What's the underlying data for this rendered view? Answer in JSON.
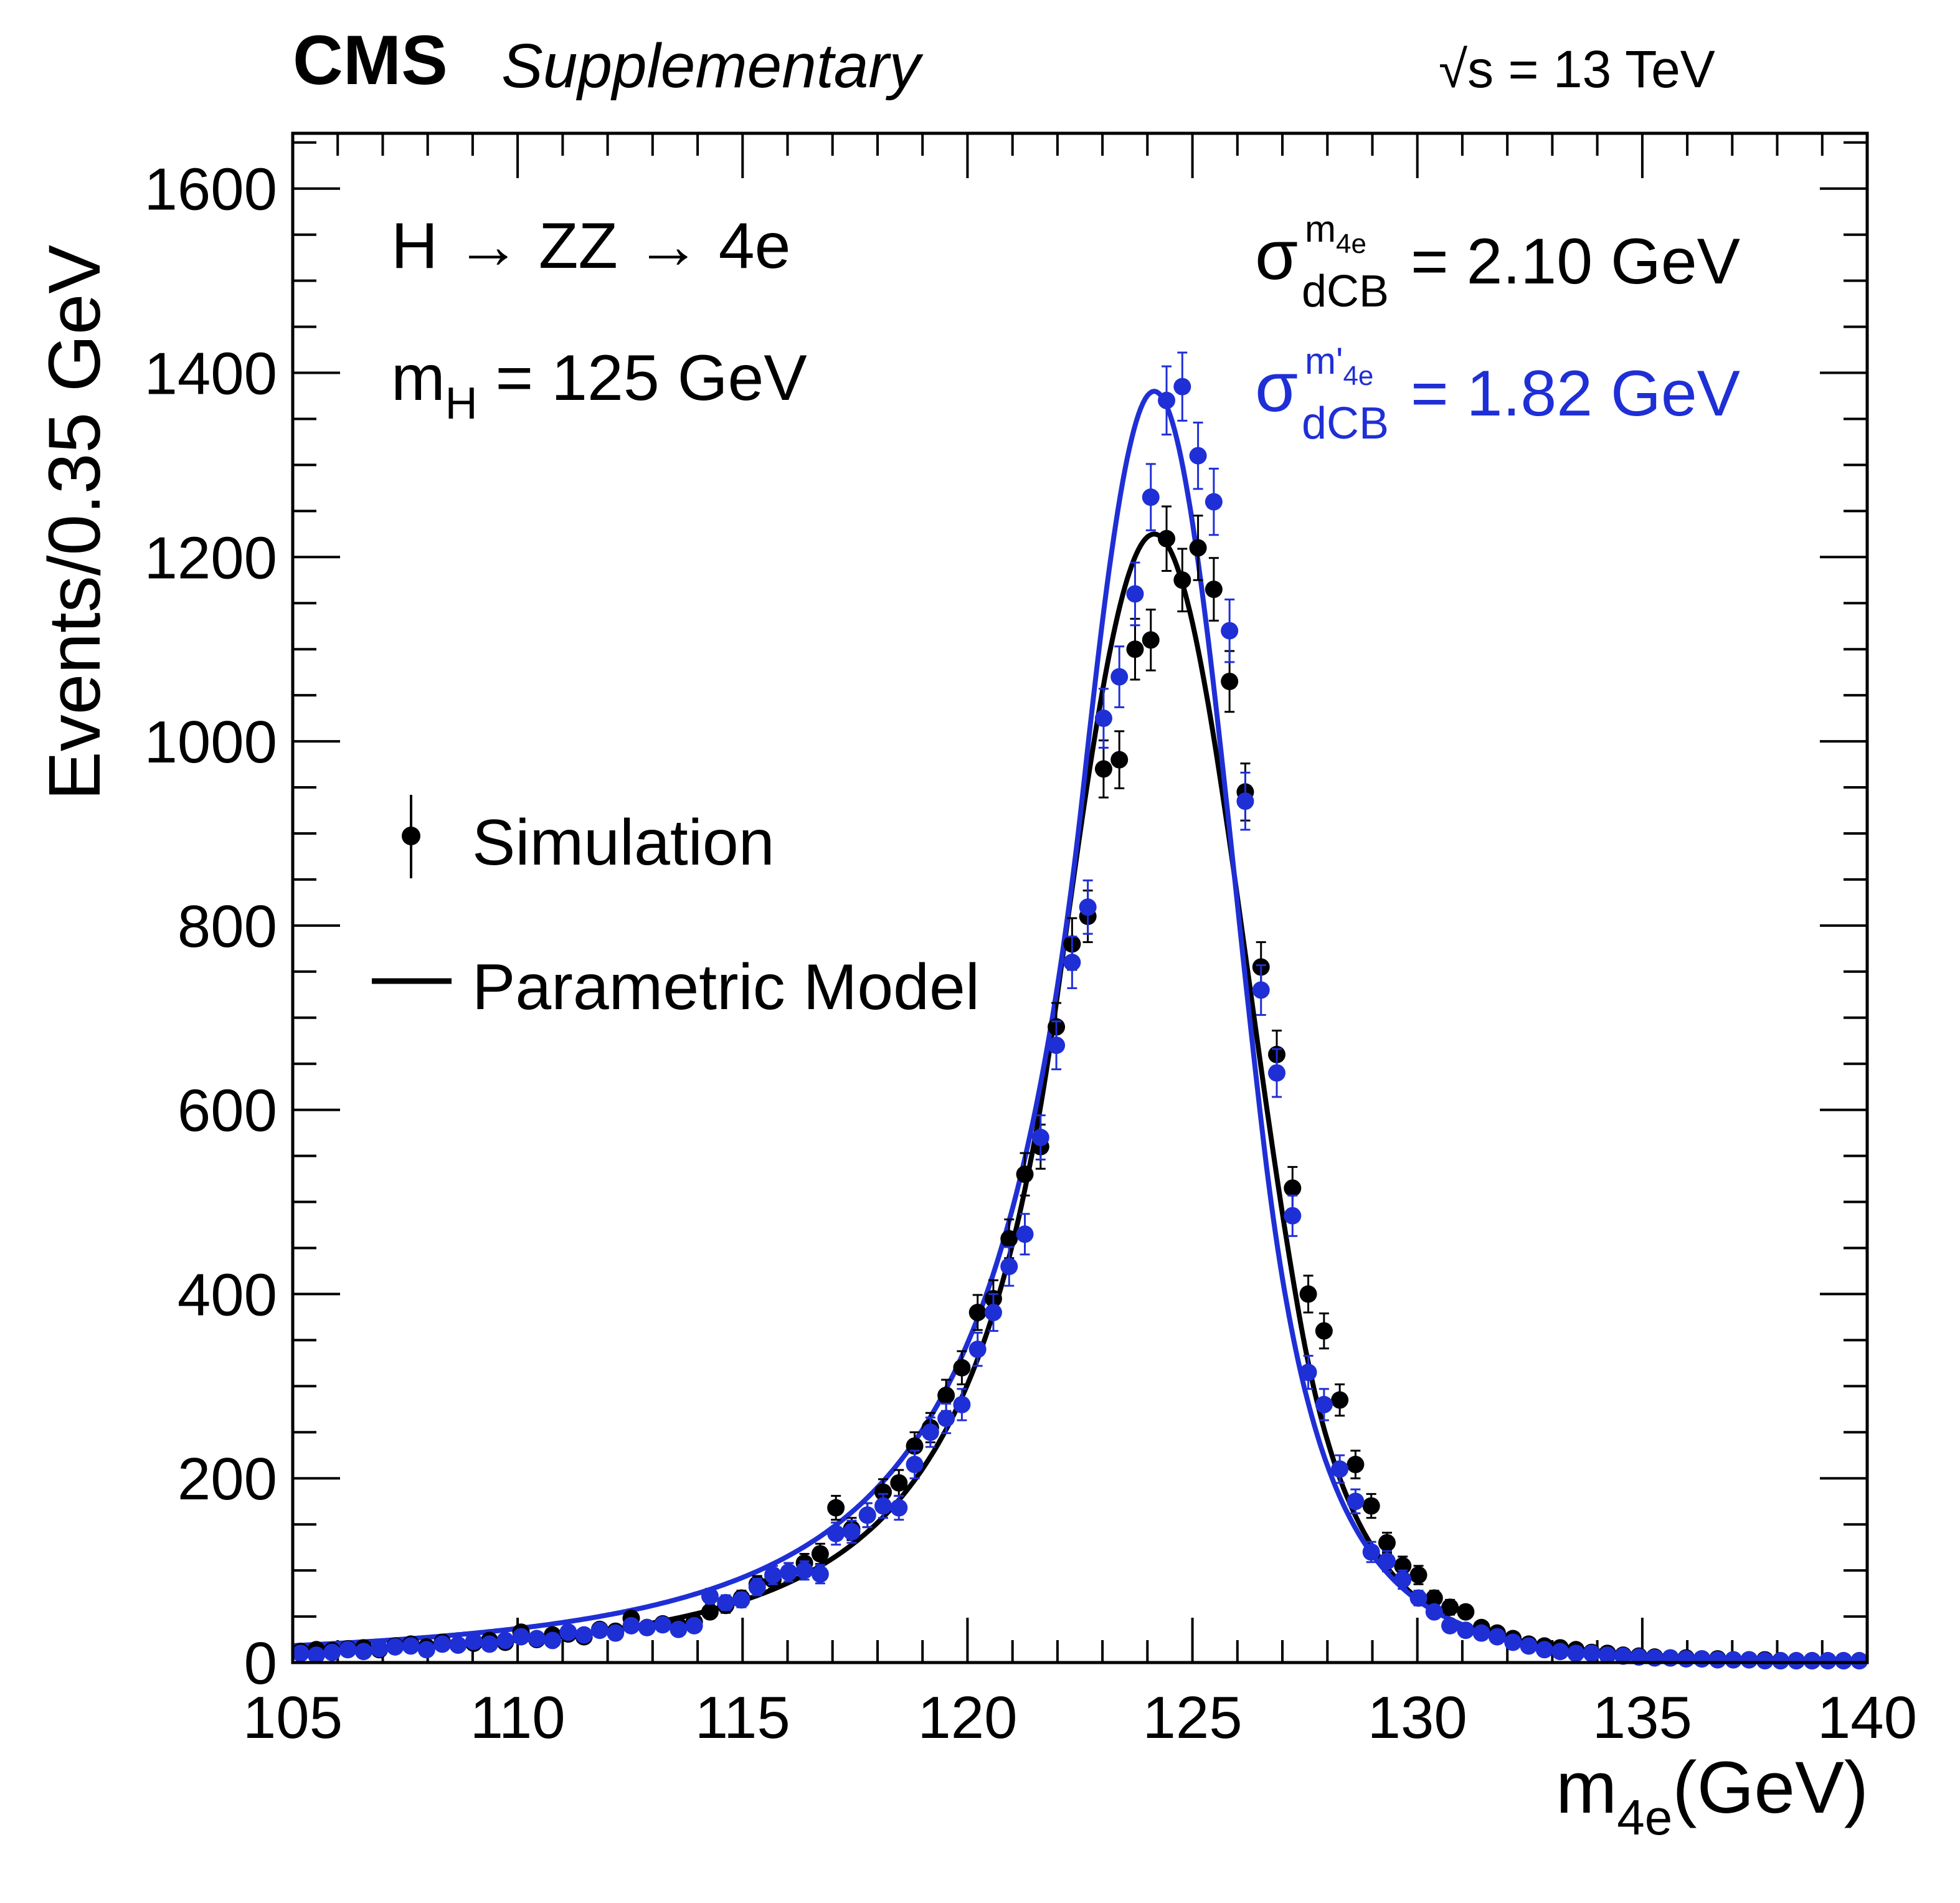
{
  "header": {
    "experiment": "CMS",
    "tag": "Supplementary",
    "energy": "√s = 13 TeV"
  },
  "annotations": {
    "process": "H → ZZ → 4e",
    "mass_symbol": "m",
    "mass_sub": "H",
    "mass_value": " = 125 GeV",
    "sigma_symbol": "σ",
    "sigma_sub": "dCB",
    "sigma1_sup_m": "m",
    "sigma1_sup_sub": "4e",
    "sigma1_value": " = 2.10 GeV",
    "sigma2_sup_m": "m'",
    "sigma2_sup_sub": "4e",
    "sigma2_value": " = 1.82 GeV"
  },
  "legend": {
    "simulation": "Simulation",
    "model": "Parametric Model"
  },
  "colors": {
    "black_series": "#000000",
    "blue_series": "#1f2fd6"
  },
  "chart_data": {
    "type": "scatter",
    "title": "",
    "xlabel_main": "m",
    "xlabel_sub": "4e",
    "xlabel_unit": "(GeV)",
    "ylabel": "Events/0.35 GeV",
    "xlim": [
      105,
      140
    ],
    "ylim": [
      0,
      1660
    ],
    "xticks": [
      105,
      110,
      115,
      120,
      125,
      130,
      135,
      140
    ],
    "yticks": [
      0,
      200,
      400,
      600,
      800,
      1000,
      1200,
      1400,
      1600
    ],
    "grid": false,
    "series": [
      {
        "name": "Simulation (m4e)",
        "color": "#000000",
        "fit": {
          "name": "Parametric Model",
          "mu": 124.15,
          "sigma": 2.1,
          "peak": 1225,
          "alphaL": 1.05,
          "nL": 3.2,
          "alphaR": 1.55,
          "nR": 6.0
        },
        "x": [
          105.175,
          105.525,
          105.875,
          106.225,
          106.575,
          106.925,
          107.275,
          107.625,
          107.975,
          108.325,
          108.675,
          109.025,
          109.375,
          109.725,
          110.075,
          110.425,
          110.775,
          111.125,
          111.475,
          111.825,
          112.175,
          112.525,
          112.875,
          113.225,
          113.575,
          113.925,
          114.275,
          114.625,
          114.975,
          115.325,
          115.675,
          116.025,
          116.375,
          116.725,
          117.075,
          117.425,
          117.775,
          118.125,
          118.475,
          118.825,
          119.175,
          119.525,
          119.875,
          120.225,
          120.575,
          120.925,
          121.275,
          121.625,
          121.975,
          122.325,
          122.675,
          123.025,
          123.375,
          123.725,
          124.075,
          124.425,
          124.775,
          125.125,
          125.475,
          125.825,
          126.175,
          126.525,
          126.875,
          127.225,
          127.575,
          127.925,
          128.275,
          128.625,
          128.975,
          129.325,
          129.675,
          130.025,
          130.375,
          130.725,
          131.075,
          131.425,
          131.775,
          132.125,
          132.475,
          132.825,
          133.175,
          133.525,
          133.875,
          134.225,
          134.575,
          134.925,
          135.275,
          135.625,
          135.975,
          136.325,
          136.675,
          137.025,
          137.375,
          137.725,
          138.075,
          138.425,
          138.775,
          139.125,
          139.475,
          139.825
        ],
        "values": [
          12,
          14,
          13,
          15,
          16,
          14,
          18,
          20,
          17,
          22,
          19,
          21,
          24,
          22,
          33,
          25,
          30,
          31,
          28,
          36,
          34,
          48,
          38,
          42,
          40,
          44,
          55,
          62,
          70,
          85,
          90,
          98,
          108,
          118,
          168,
          145,
          160,
          185,
          195,
          235,
          255,
          290,
          320,
          380,
          395,
          460,
          530,
          560,
          690,
          780,
          810,
          970,
          980,
          1100,
          1110,
          1220,
          1175,
          1210,
          1165,
          1065,
          945,
          755,
          660,
          515,
          400,
          360,
          285,
          215,
          170,
          130,
          105,
          95,
          70,
          60,
          55,
          38,
          32,
          26,
          20,
          18,
          16,
          14,
          11,
          10,
          8,
          7,
          6,
          5,
          5,
          4,
          4,
          3,
          3,
          3,
          2,
          2,
          2,
          2,
          2,
          2
        ],
        "errors": [
          4,
          4,
          4,
          4,
          4,
          4,
          4,
          5,
          4,
          5,
          4,
          5,
          5,
          5,
          6,
          5,
          6,
          6,
          5,
          6,
          6,
          7,
          6,
          7,
          6,
          7,
          7,
          8,
          8,
          9,
          10,
          10,
          10,
          11,
          13,
          12,
          13,
          14,
          14,
          15,
          16,
          17,
          18,
          19,
          20,
          21,
          23,
          24,
          26,
          28,
          28,
          31,
          31,
          33,
          33,
          35,
          34,
          35,
          34,
          33,
          31,
          27,
          26,
          23,
          20,
          19,
          17,
          15,
          13,
          11,
          10,
          10,
          8,
          8,
          7,
          6,
          6,
          5,
          4,
          4,
          4,
          4,
          3,
          3,
          3,
          3,
          2,
          2,
          2,
          2,
          2,
          2,
          2,
          2,
          1,
          1,
          1,
          1,
          1,
          1
        ]
      },
      {
        "name": "Simulation (m'4e)",
        "color": "#1f2fd6",
        "fit": {
          "name": "Parametric Model",
          "mu": 124.15,
          "sigma": 1.82,
          "peak": 1380,
          "alphaL": 0.85,
          "nL": 3.0,
          "alphaR": 1.35,
          "nR": 6.0
        },
        "x": [
          105.175,
          105.525,
          105.875,
          106.225,
          106.575,
          106.925,
          107.275,
          107.625,
          107.975,
          108.325,
          108.675,
          109.025,
          109.375,
          109.725,
          110.075,
          110.425,
          110.775,
          111.125,
          111.475,
          111.825,
          112.175,
          112.525,
          112.875,
          113.225,
          113.575,
          113.925,
          114.275,
          114.625,
          114.975,
          115.325,
          115.675,
          116.025,
          116.375,
          116.725,
          117.075,
          117.425,
          117.775,
          118.125,
          118.475,
          118.825,
          119.175,
          119.525,
          119.875,
          120.225,
          120.575,
          120.925,
          121.275,
          121.625,
          121.975,
          122.325,
          122.675,
          123.025,
          123.375,
          123.725,
          124.075,
          124.425,
          124.775,
          125.125,
          125.475,
          125.825,
          126.175,
          126.525,
          126.875,
          127.225,
          127.575,
          127.925,
          128.275,
          128.625,
          128.975,
          129.325,
          129.675,
          130.025,
          130.375,
          130.725,
          131.075,
          131.425,
          131.775,
          132.125,
          132.475,
          132.825,
          133.175,
          133.525,
          133.875,
          134.225,
          134.575,
          134.925,
          135.275,
          135.625,
          135.975,
          136.325,
          136.675,
          137.025,
          137.375,
          137.725,
          138.075,
          138.425,
          138.775,
          139.125,
          139.475,
          139.825
        ],
        "values": [
          10,
          8,
          11,
          14,
          12,
          15,
          17,
          18,
          14,
          20,
          19,
          23,
          20,
          24,
          28,
          26,
          24,
          33,
          30,
          35,
          32,
          40,
          38,
          41,
          36,
          40,
          72,
          65,
          68,
          82,
          95,
          98,
          100,
          96,
          140,
          142,
          160,
          170,
          168,
          215,
          250,
          265,
          280,
          340,
          380,
          430,
          465,
          570,
          670,
          760,
          820,
          1025,
          1070,
          1160,
          1265,
          1370,
          1385,
          1310,
          1260,
          1120,
          935,
          730,
          640,
          485,
          315,
          280,
          210,
          175,
          120,
          110,
          90,
          70,
          55,
          40,
          35,
          32,
          28,
          22,
          18,
          14,
          12,
          10,
          10,
          8,
          7,
          6,
          5,
          5,
          4,
          4,
          3,
          3,
          3,
          2,
          2,
          2,
          2,
          2,
          2,
          2
        ],
        "errors": [
          3,
          3,
          4,
          4,
          4,
          4,
          4,
          4,
          4,
          5,
          4,
          5,
          5,
          5,
          5,
          5,
          5,
          6,
          6,
          6,
          6,
          6,
          6,
          7,
          6,
          6,
          8,
          8,
          8,
          9,
          10,
          10,
          10,
          10,
          12,
          12,
          13,
          13,
          13,
          15,
          16,
          16,
          17,
          18,
          20,
          21,
          22,
          24,
          26,
          28,
          29,
          32,
          33,
          34,
          36,
          37,
          37,
          36,
          36,
          34,
          31,
          27,
          26,
          22,
          18,
          17,
          15,
          13,
          11,
          11,
          10,
          8,
          7,
          6,
          6,
          6,
          5,
          5,
          4,
          4,
          3,
          3,
          3,
          3,
          3,
          2,
          2,
          2,
          2,
          2,
          2,
          2,
          2,
          1,
          1,
          1,
          1,
          1,
          1,
          1
        ]
      }
    ]
  }
}
